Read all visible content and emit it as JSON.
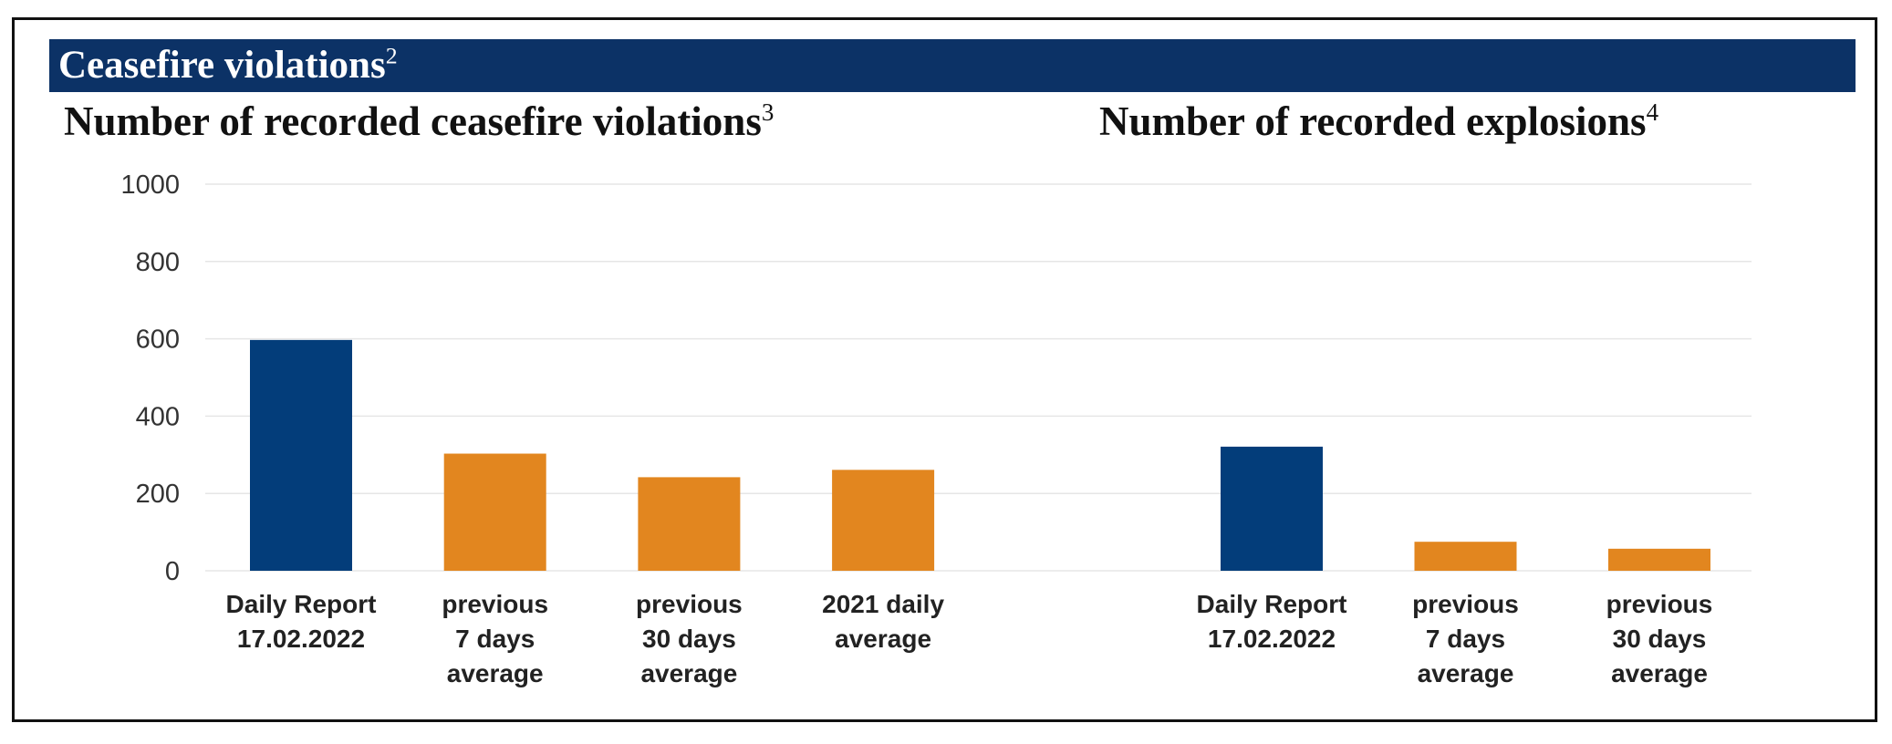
{
  "header": {
    "title": "Ceasefire violations",
    "title_sup": "2"
  },
  "colors": {
    "banner": "#0c3266",
    "primary": "#033d7a",
    "secondary": "#e2861f",
    "grid": "#e6e6e6"
  },
  "chart_data": [
    {
      "type": "bar",
      "title": "Number of recorded ceasefire violations",
      "title_sup": "3",
      "categories": [
        [
          "Daily Report",
          "17.02.2022"
        ],
        [
          "previous",
          "7 days",
          "average"
        ],
        [
          "previous",
          "30 days",
          "average"
        ],
        [
          "2021 daily",
          "average"
        ]
      ],
      "values": [
        597,
        303,
        242,
        261
      ],
      "bar_colors": [
        "primary",
        "secondary",
        "secondary",
        "secondary"
      ],
      "ylim": [
        0,
        1000
      ],
      "yticks": [
        0,
        200,
        400,
        600,
        800,
        1000
      ],
      "grid": true,
      "xlabel": "",
      "ylabel": ""
    },
    {
      "type": "bar",
      "title": "Number of recorded explosions",
      "title_sup": "4",
      "categories": [
        [
          "Daily Report",
          "17.02.2022"
        ],
        [
          "previous",
          "7 days",
          "average"
        ],
        [
          "previous",
          "30 days",
          "average"
        ]
      ],
      "values": [
        321,
        75,
        57
      ],
      "bar_colors": [
        "primary",
        "secondary",
        "secondary"
      ],
      "ylim": [
        0,
        1000
      ],
      "grid": true,
      "xlabel": "",
      "ylabel": ""
    }
  ]
}
